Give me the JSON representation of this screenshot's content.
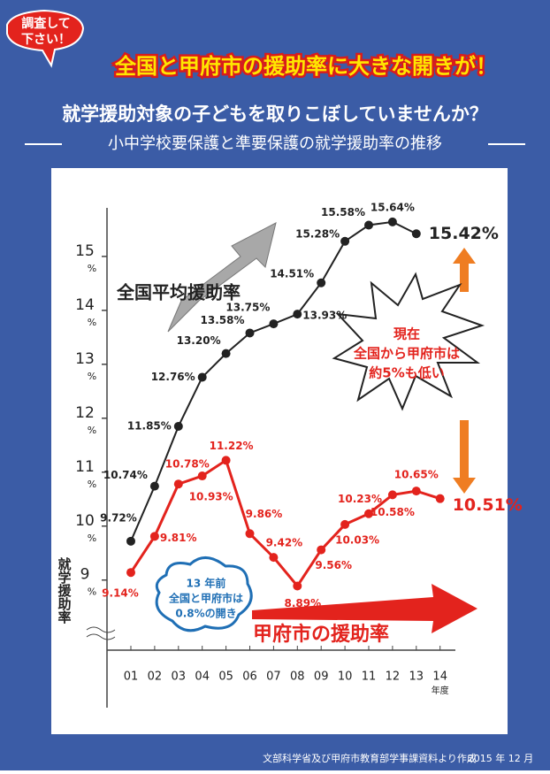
{
  "badge_lines": [
    "調査して",
    "下さい！"
  ],
  "headline": "全国と甲府市の援助率に大きな開きが！",
  "title": "就学援助対象の子どもを取りこぼしていませんか？",
  "subtitle": "小中学校要保護と準要保護の就学援助率の推移",
  "footer_source": "文部科学省及び甲府市教育部学事課資料より作成",
  "footer_date": "2015 年 12 月",
  "chart_data": {
    "type": "line",
    "categories": [
      "01",
      "02",
      "03",
      "04",
      "05",
      "06",
      "07",
      "08",
      "09",
      "10",
      "11",
      "12",
      "13",
      "14"
    ],
    "xlabel": "年度",
    "ylabel": "就学援助率",
    "ylim": [
      7.7,
      15.9
    ],
    "yticks": [
      9,
      10,
      11,
      12,
      13,
      14,
      15
    ],
    "y_tick_unit": "%",
    "series": [
      {
        "name": "全国平均援助率",
        "color": "#222222",
        "values": [
          9.72,
          10.74,
          11.85,
          12.76,
          13.2,
          13.58,
          13.75,
          13.93,
          14.51,
          15.28,
          15.58,
          15.64,
          15.42,
          null
        ],
        "value_labels": [
          "9.72%",
          "10.74%",
          "11.85%",
          "12.76%",
          "13.20%",
          "13.58%",
          "13.75%",
          "13.93%",
          "14.51%",
          "15.28%",
          "15.58%",
          "15.64%",
          "15.42%",
          null
        ]
      },
      {
        "name": "甲府市の援助率",
        "color": "#e3231d",
        "values": [
          9.14,
          9.81,
          10.78,
          10.93,
          11.22,
          9.86,
          9.42,
          8.89,
          9.56,
          10.03,
          10.23,
          10.58,
          10.65,
          10.51
        ],
        "value_labels": [
          "9.14%",
          "9.81%",
          "10.78%",
          "10.93%",
          "11.22%",
          "9.86%",
          "9.42%",
          "8.89%",
          "9.56%",
          "10.03%",
          "10.23%",
          "10.58%",
          "10.65%",
          "10.51%"
        ]
      }
    ],
    "annotations": {
      "burst": [
        "現在",
        "全国から甲府市は",
        "約5%も低い"
      ],
      "cloud": [
        "13 年前",
        "全国と甲府市は",
        "0.8%の開き"
      ]
    }
  }
}
